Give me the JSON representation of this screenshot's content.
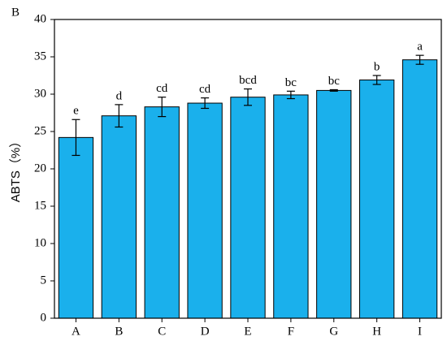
{
  "chart_data": {
    "type": "bar",
    "panel_label": "B",
    "y_label": "ABTS（%）",
    "categories": [
      "A",
      "B",
      "C",
      "D",
      "E",
      "F",
      "G",
      "H",
      "I"
    ],
    "values": [
      24.2,
      27.1,
      28.3,
      28.8,
      29.6,
      29.9,
      30.5,
      31.9,
      34.6
    ],
    "errors": [
      2.4,
      1.5,
      1.3,
      0.7,
      1.1,
      0.5,
      0.1,
      0.6,
      0.6
    ],
    "annotations": [
      "e",
      "d",
      "cd",
      "cd",
      "bcd",
      "bc",
      "bc",
      "b",
      "a"
    ],
    "color": "#1ab0ec",
    "ylim": [
      0,
      40
    ],
    "yticks": [
      0,
      5,
      10,
      15,
      20,
      25,
      30,
      35,
      40
    ]
  }
}
